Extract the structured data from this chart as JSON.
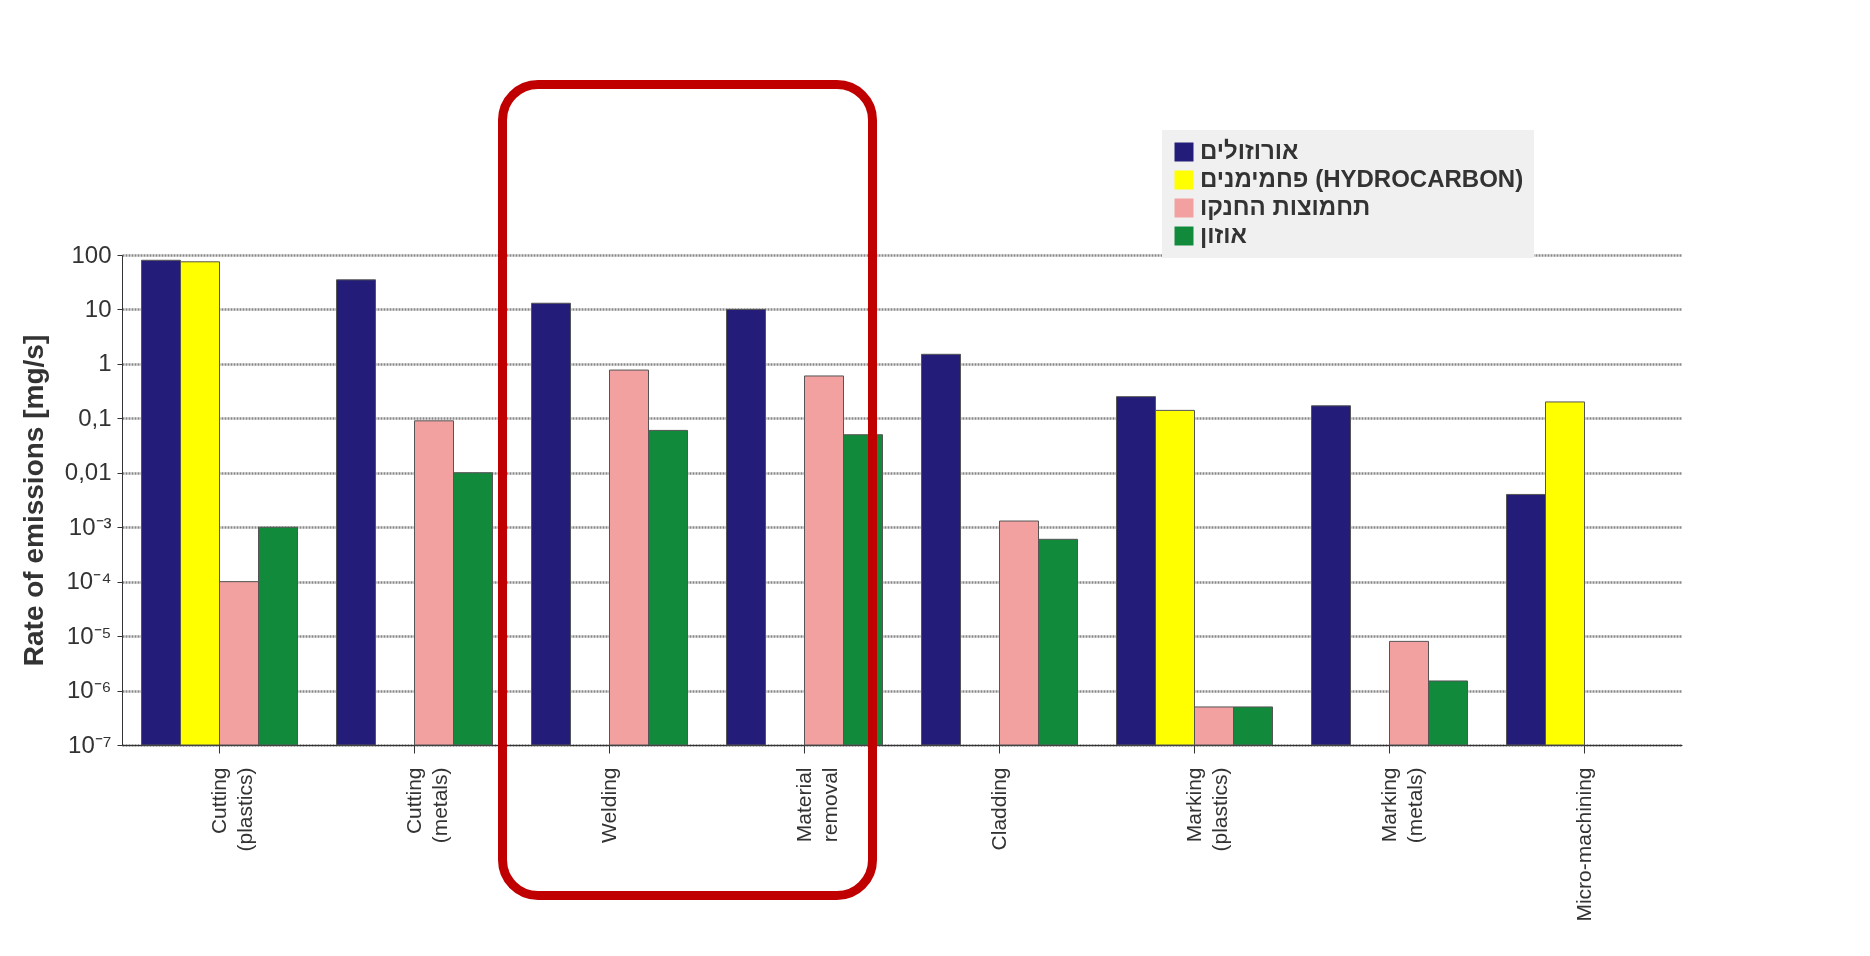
{
  "chart_data": {
    "type": "bar",
    "ylabel": "Rate of emissions [mg/s]",
    "categories": [
      "Cutting (plastics)",
      "Cutting (metals)",
      "Welding",
      "Material removal",
      "Cladding",
      "Marking (plastics)",
      "Marking (metals)",
      "Micro-machining"
    ],
    "series": [
      {
        "name": "אורוזולים",
        "color": "#231c78",
        "values": [
          80,
          35,
          13,
          10,
          1.5,
          0.25,
          0.17,
          0.004
        ]
      },
      {
        "name": "פחמימנים (HYDROCARBON)",
        "color": "#ffff00",
        "values": [
          75,
          null,
          null,
          null,
          null,
          0.14,
          null,
          0.2
        ]
      },
      {
        "name": "תחמוצות החנקו",
        "color": "#f2a0a0",
        "values": [
          0.0001,
          0.09,
          0.77,
          0.6,
          0.0013,
          5e-07,
          8e-06,
          null
        ]
      },
      {
        "name": "אוזון",
        "color": "#128a3c",
        "values": [
          0.001,
          0.01,
          0.06,
          0.05,
          0.0006,
          5e-07,
          1.5e-06,
          null
        ]
      }
    ],
    "log": true,
    "ylim": [
      1e-07,
      100
    ],
    "yticks": [
      {
        "value": 1e-07,
        "label": "10⁻⁷"
      },
      {
        "value": 1e-06,
        "label": "10⁻⁶"
      },
      {
        "value": 1e-05,
        "label": "10⁻⁵"
      },
      {
        "value": 0.0001,
        "label": "10⁻⁴"
      },
      {
        "value": 0.001,
        "label": "10⁻³"
      },
      {
        "value": 0.01,
        "label": "0,01"
      },
      {
        "value": 0.1,
        "label": "0,1"
      },
      1,
      10,
      100
    ],
    "grid": "y",
    "legend": "top right"
  }
}
